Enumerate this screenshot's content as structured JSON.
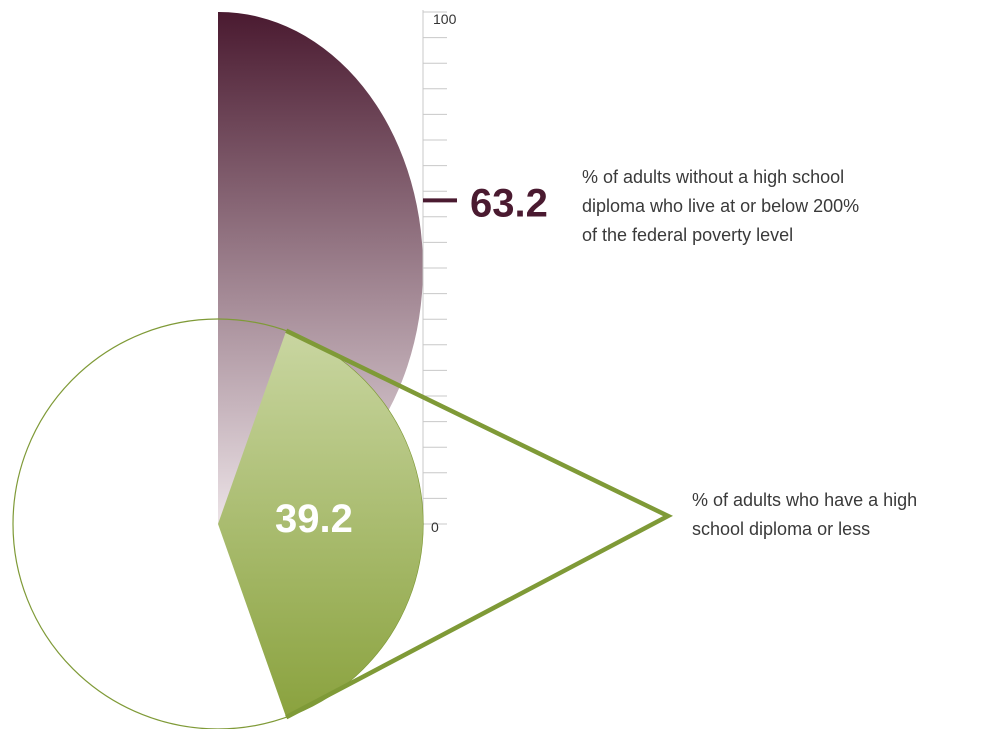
{
  "chart_data": {
    "type": "pie",
    "axis": {
      "min": 0,
      "max": 100,
      "min_label": "0",
      "max_label": "100",
      "major_step": 10,
      "minor_step": 5
    },
    "half_circle_metric": {
      "value": 63.2,
      "value_label": "63.2",
      "description": [
        "% of adults without a high school",
        "diploma who live at or below 200%",
        "of the federal poverty level"
      ],
      "color": "#4a1a30"
    },
    "pie_metric": {
      "value": 39.2,
      "value_label": "39.2",
      "description": [
        "% of adults who have a high",
        "school diploma or less"
      ],
      "color": "#7f9a37"
    },
    "colors": {
      "maroon_dark": "#4a1a30",
      "maroon_light": "#e9dde3",
      "green_light": "#c6d39b",
      "green_dark": "#8aa23e",
      "axis": "#c8c8c8",
      "circle_outline": "#7f9a37"
    }
  }
}
